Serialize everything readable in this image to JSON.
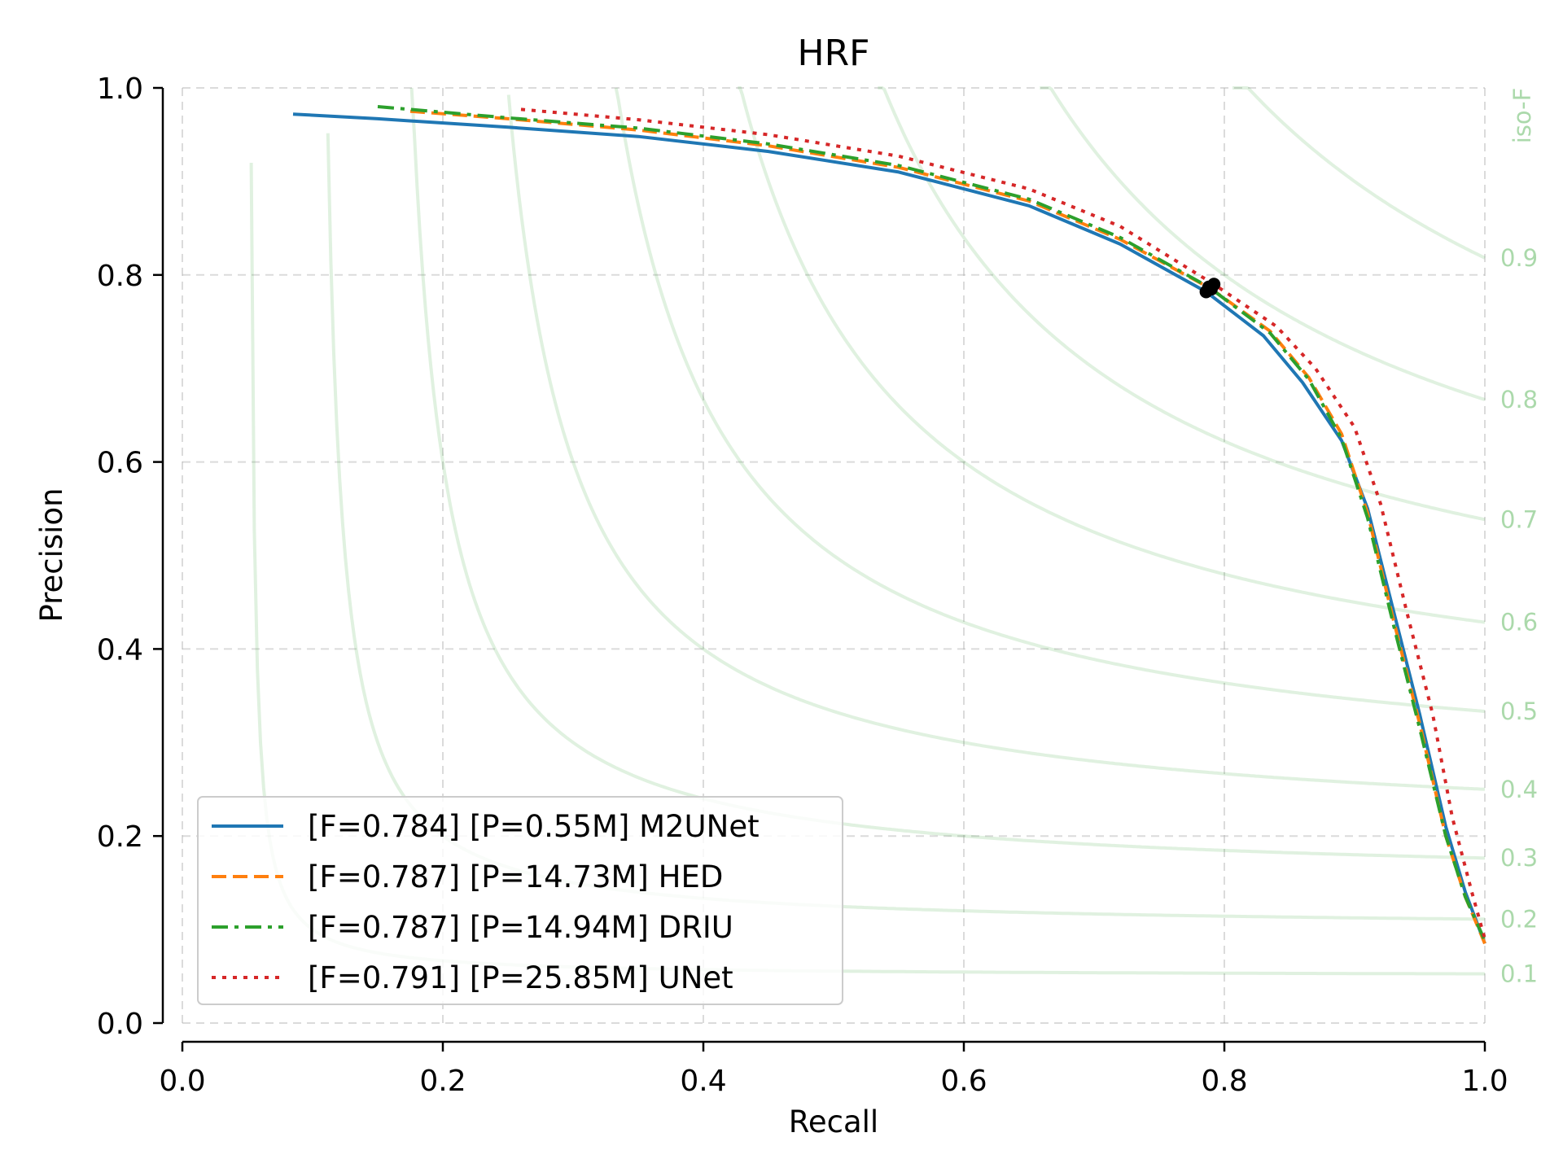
{
  "chart_data": {
    "type": "line",
    "title": "HRF",
    "xlabel": "Recall",
    "ylabel": "Precision",
    "xlim": [
      0,
      1
    ],
    "ylim": [
      0,
      1
    ],
    "grid": true,
    "x_ticks": [
      "0.0",
      "0.2",
      "0.4",
      "0.6",
      "0.8",
      "1.0"
    ],
    "y_ticks": [
      "0.0",
      "0.2",
      "0.4",
      "0.6",
      "0.8",
      "1.0"
    ],
    "iso_f": {
      "label": "iso-F",
      "color": "#2ca02c",
      "levels": [
        0.1,
        0.2,
        0.3,
        0.4,
        0.5,
        0.6,
        0.7,
        0.8,
        0.9
      ],
      "level_labels": [
        "0.1",
        "0.2",
        "0.3",
        "0.4",
        "0.5",
        "0.6",
        "0.7",
        "0.8",
        "0.9"
      ]
    },
    "legend_position": "lower-left",
    "series": [
      {
        "name": "[F=0.784] [P=0.55M] M2UNet",
        "color": "#1f77b4",
        "dash": "solid",
        "best_point": [
          0.786,
          0.782
        ],
        "points": [
          [
            0.085,
            0.972
          ],
          [
            0.15,
            0.967
          ],
          [
            0.25,
            0.958
          ],
          [
            0.35,
            0.948
          ],
          [
            0.45,
            0.932
          ],
          [
            0.55,
            0.91
          ],
          [
            0.65,
            0.874
          ],
          [
            0.72,
            0.833
          ],
          [
            0.786,
            0.782
          ],
          [
            0.83,
            0.735
          ],
          [
            0.86,
            0.685
          ],
          [
            0.89,
            0.623
          ],
          [
            0.91,
            0.55
          ],
          [
            0.93,
            0.44
          ],
          [
            0.95,
            0.33
          ],
          [
            0.97,
            0.21
          ],
          [
            0.985,
            0.14
          ],
          [
            1.0,
            0.085
          ]
        ]
      },
      {
        "name": "[F=0.787] [P=14.73M] HED",
        "color": "#ff7f0e",
        "dash": "dashed",
        "best_point": [
          0.79,
          0.785
        ],
        "points": [
          [
            0.175,
            0.975
          ],
          [
            0.25,
            0.967
          ],
          [
            0.35,
            0.955
          ],
          [
            0.45,
            0.938
          ],
          [
            0.55,
            0.915
          ],
          [
            0.65,
            0.879
          ],
          [
            0.72,
            0.838
          ],
          [
            0.79,
            0.785
          ],
          [
            0.835,
            0.74
          ],
          [
            0.865,
            0.69
          ],
          [
            0.89,
            0.63
          ],
          [
            0.91,
            0.545
          ],
          [
            0.93,
            0.43
          ],
          [
            0.95,
            0.32
          ],
          [
            0.97,
            0.2
          ],
          [
            0.985,
            0.135
          ],
          [
            1.0,
            0.085
          ]
        ]
      },
      {
        "name": "[F=0.787] [P=14.94M] DRIU",
        "color": "#2ca02c",
        "dash": "dashdot",
        "best_point": [
          0.788,
          0.787
        ],
        "points": [
          [
            0.15,
            0.98
          ],
          [
            0.25,
            0.968
          ],
          [
            0.35,
            0.957
          ],
          [
            0.45,
            0.94
          ],
          [
            0.55,
            0.917
          ],
          [
            0.65,
            0.881
          ],
          [
            0.72,
            0.84
          ],
          [
            0.788,
            0.787
          ],
          [
            0.835,
            0.738
          ],
          [
            0.865,
            0.688
          ],
          [
            0.89,
            0.625
          ],
          [
            0.91,
            0.54
          ],
          [
            0.93,
            0.425
          ],
          [
            0.95,
            0.315
          ],
          [
            0.97,
            0.2
          ],
          [
            0.985,
            0.135
          ],
          [
            1.0,
            0.088
          ]
        ]
      },
      {
        "name": "[F=0.791] [P=25.85M] UNet",
        "color": "#d62728",
        "dash": "dotted",
        "best_point": [
          0.792,
          0.79
        ],
        "points": [
          [
            0.26,
            0.977
          ],
          [
            0.35,
            0.966
          ],
          [
            0.45,
            0.95
          ],
          [
            0.55,
            0.927
          ],
          [
            0.65,
            0.892
          ],
          [
            0.72,
            0.852
          ],
          [
            0.792,
            0.79
          ],
          [
            0.84,
            0.745
          ],
          [
            0.87,
            0.7
          ],
          [
            0.9,
            0.637
          ],
          [
            0.92,
            0.555
          ],
          [
            0.94,
            0.44
          ],
          [
            0.96,
            0.33
          ],
          [
            0.975,
            0.22
          ],
          [
            0.99,
            0.14
          ],
          [
            1.0,
            0.09
          ]
        ]
      }
    ]
  }
}
